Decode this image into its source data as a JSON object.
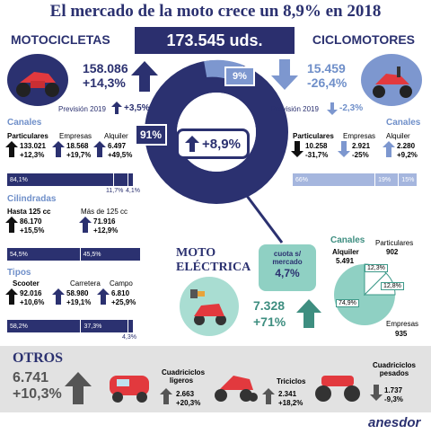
{
  "title": "El mercado de la moto crece un 8,9% en 2018",
  "total": "173.545 uds.",
  "moto": {
    "header": "MOTOCICLETAS",
    "units": "158.086",
    "pct": "+14,3%",
    "forecast_label": "Previsión 2019",
    "forecast": "+3,5%",
    "share": "91%",
    "canales_title": "Canales",
    "canales": [
      {
        "label": "Particulares",
        "value": "133.021",
        "pct": "+12,3%"
      },
      {
        "label": "Empresas",
        "value": "18.568",
        "pct": "+19,7%"
      },
      {
        "label": "Alquiler",
        "value": "6.497",
        "pct": "+49,5%"
      }
    ],
    "canales_bar": [
      "84,1%",
      "11,7%",
      "4,1%"
    ],
    "cil_title": "Cilindradas",
    "cil": [
      {
        "label": "Hasta 125 cc",
        "value": "86.170",
        "pct": "+15,5%"
      },
      {
        "label": "Más de 125 cc",
        "value": "71.916",
        "pct": "+12,9%"
      }
    ],
    "cil_bar": [
      "54,5%",
      "45,5%"
    ],
    "tipos_title": "Tipos",
    "tipos": [
      {
        "label": "Scooter",
        "value": "92.016",
        "pct": "+10,6%"
      },
      {
        "label": "Carretera",
        "value": "58.980",
        "pct": "+19,1%"
      },
      {
        "label": "Campo",
        "value": "6.810",
        "pct": "+25,9%"
      }
    ],
    "tipos_bar": [
      "58,2%",
      "37,3%",
      "4,3%"
    ]
  },
  "ciclo": {
    "header": "CICLOMOTORES",
    "units": "15.459",
    "pct": "-26,4%",
    "share": "9%",
    "forecast_label": "Previsión 2019",
    "forecast": "-2,3%",
    "canales_title": "Canales",
    "canales": [
      {
        "label": "Particulares",
        "value": "10.258",
        "pct": "-31,7%"
      },
      {
        "label": "Empresas",
        "value": "2.921",
        "pct": "-25%"
      },
      {
        "label": "Alquiler",
        "value": "2.280",
        "pct": "+9,2%"
      }
    ],
    "canales_bar": [
      "66%",
      "19%",
      "15%"
    ]
  },
  "center_pct": "+8,9%",
  "electrica": {
    "title1": "MOTO",
    "title2": "ELÉCTRICA",
    "cuota_label1": "cuota s/",
    "cuota_label2": "mercado",
    "cuota": "4,7%",
    "units": "7.328",
    "pct": "+71%",
    "canales_title": "Canales",
    "pie_labels": {
      "alquiler": "Alquiler",
      "alquiler_value": "5.491",
      "particulares": "Particulares",
      "particulares_value": "902",
      "empresas": "Empresas",
      "empresas_value": "935"
    }
  },
  "otros": {
    "title": "OTROS",
    "units": "6.741",
    "pct": "+10,3%",
    "items": [
      {
        "label1": "Cuadriciclos",
        "label2": "ligeros",
        "value": "2.663",
        "pct": "+20,3%"
      },
      {
        "label1": "Triciclos",
        "label2": "",
        "value": "2.341",
        "pct": "+18,2%"
      },
      {
        "label1": "Cuadriciclos",
        "label2": "pesados",
        "value": "1.737",
        "pct": "-9,3%"
      }
    ]
  },
  "brand": "anesdor",
  "chart_data": [
    {
      "type": "pie",
      "title": "",
      "categories": [
        "MOTOCICLETAS",
        "CICLOMOTORES"
      ],
      "values": [
        91,
        9
      ]
    },
    {
      "type": "bar",
      "title": "Canales (Motocicletas)",
      "categories": [
        "Particulares",
        "Empresas",
        "Alquiler"
      ],
      "values": [
        84.1,
        11.7,
        4.1
      ]
    },
    {
      "type": "bar",
      "title": "Cilindradas",
      "categories": [
        "Hasta 125 cc",
        "Más de 125 cc"
      ],
      "values": [
        54.5,
        45.5
      ]
    },
    {
      "type": "bar",
      "title": "Tipos",
      "categories": [
        "Scooter",
        "Carretera",
        "Campo"
      ],
      "values": [
        58.2,
        37.3,
        4.3
      ]
    },
    {
      "type": "bar",
      "title": "Canales (Ciclomotores)",
      "categories": [
        "Particulares",
        "Empresas",
        "Alquiler"
      ],
      "values": [
        66,
        19,
        15
      ]
    },
    {
      "type": "pie",
      "title": "Canales (Moto eléctrica)",
      "categories": [
        "Alquiler",
        "Particulares",
        "Empresas"
      ],
      "values": [
        74.9,
        12.3,
        12.8
      ]
    }
  ],
  "colors": {
    "navy": "#2b3170",
    "light_blue": "#7d97cf",
    "teal": "#3e9a8a",
    "teal_light": "#8fd0c3",
    "red": "#e2393e"
  }
}
